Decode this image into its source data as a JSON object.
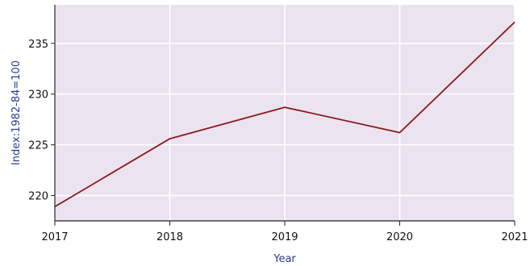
{
  "chart_data": {
    "type": "line",
    "title": "",
    "xlabel": "Year",
    "ylabel": "Index:1982-84=100",
    "x": [
      2017,
      2018,
      2019,
      2020,
      2021
    ],
    "series": [
      {
        "values": [
          218.9,
          225.6,
          228.7,
          226.2,
          237.1
        ]
      }
    ],
    "xlim": [
      2017,
      2021
    ],
    "ylim": [
      217.5,
      238.8
    ],
    "xticks": [
      "2017",
      "2018",
      "2019",
      "2020",
      "2021"
    ],
    "yticks": [
      220,
      225,
      230,
      235
    ],
    "ytick_labels": [
      "220",
      "225",
      "230",
      "235"
    ],
    "grid": true,
    "legend": "none",
    "colors": {
      "plot_background": "#ece3f1",
      "grid": "#ffffff",
      "line": "#8b1a1a",
      "axis_title": "#2a3f8f"
    }
  }
}
